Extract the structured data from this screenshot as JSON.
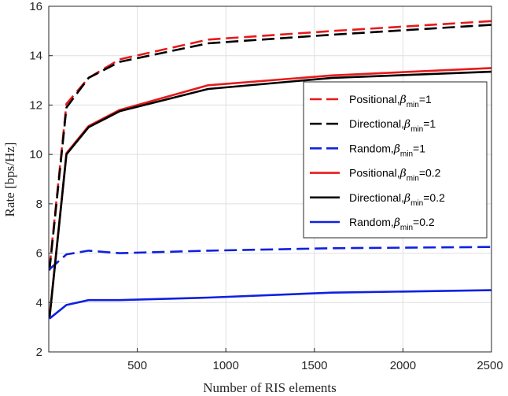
{
  "chart_data": {
    "type": "line",
    "title": "",
    "xlabel": "Number of RIS elements",
    "ylabel": "Rate [bps/Hz]",
    "xlim": [
      0,
      2500
    ],
    "ylim": [
      2,
      16
    ],
    "xticks": [
      500,
      1000,
      1500,
      2000,
      2500
    ],
    "yticks": [
      2,
      4,
      6,
      8,
      10,
      12,
      14,
      16
    ],
    "grid": true,
    "legend_position": "right",
    "x": [
      4,
      100,
      225,
      400,
      900,
      1600,
      2500
    ],
    "series": [
      {
        "name": "Positional,",
        "beta_sub": "min",
        "beta_val": "=1",
        "color": "#e8191b",
        "dash": "dashed",
        "values": [
          5.4,
          12.05,
          13.1,
          13.85,
          14.65,
          15.0,
          15.4
        ]
      },
      {
        "name": "Directional,",
        "beta_sub": "min",
        "beta_val": "=1",
        "color": "#000000",
        "dash": "dashed",
        "values": [
          5.3,
          11.9,
          13.1,
          13.75,
          14.5,
          14.85,
          15.25
        ]
      },
      {
        "name": "Random,",
        "beta_sub": "min",
        "beta_val": "=1",
        "color": "#1020e0",
        "dash": "dashed",
        "values": [
          5.35,
          5.95,
          6.1,
          6.0,
          6.1,
          6.2,
          6.25
        ]
      },
      {
        "name": "Positional,",
        "beta_sub": "min",
        "beta_val": "=0.2",
        "color": "#e8191b",
        "dash": "solid",
        "values": [
          3.4,
          10.05,
          11.15,
          11.8,
          12.8,
          13.2,
          13.5
        ]
      },
      {
        "name": "Directional,",
        "beta_sub": "min",
        "beta_val": "=0.2",
        "color": "#000000",
        "dash": "solid",
        "values": [
          3.35,
          10.0,
          11.1,
          11.75,
          12.65,
          13.1,
          13.35
        ]
      },
      {
        "name": "Random,",
        "beta_sub": "min",
        "beta_val": "=0.2",
        "color": "#1020e0",
        "dash": "solid",
        "values": [
          3.35,
          3.9,
          4.1,
          4.1,
          4.2,
          4.4,
          4.5
        ]
      }
    ],
    "beta_symbol": "β"
  }
}
